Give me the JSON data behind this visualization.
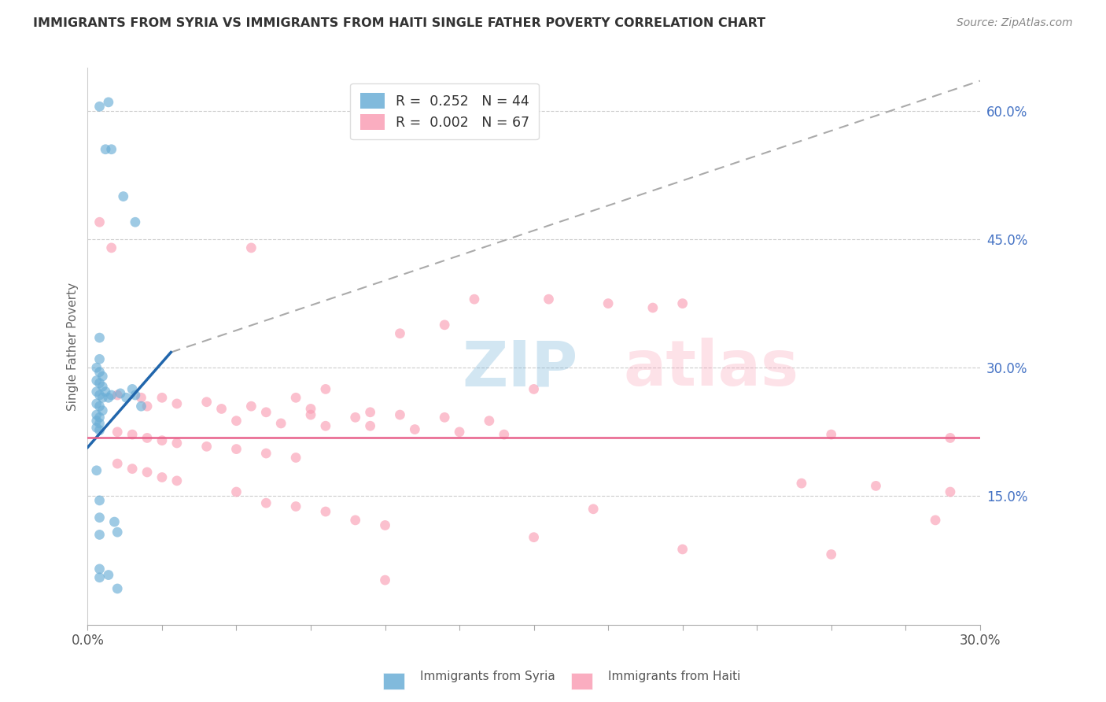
{
  "title": "IMMIGRANTS FROM SYRIA VS IMMIGRANTS FROM HAITI SINGLE FATHER POVERTY CORRELATION CHART",
  "source": "Source: ZipAtlas.com",
  "ylabel": "Single Father Poverty",
  "xlim": [
    0.0,
    0.3
  ],
  "ylim": [
    0.0,
    0.65
  ],
  "xtick_minor_vals": [
    0.0,
    0.025,
    0.05,
    0.075,
    0.1,
    0.125,
    0.15,
    0.175,
    0.2,
    0.225,
    0.25,
    0.275,
    0.3
  ],
  "xtick_edge_labels": {
    "0.0": "0.0%",
    "0.30": "30.0%"
  },
  "ytick_labels_right": [
    "15.0%",
    "30.0%",
    "45.0%",
    "60.0%"
  ],
  "ytick_vals_right": [
    0.15,
    0.3,
    0.45,
    0.6
  ],
  "legend_syria_R": "0.252",
  "legend_syria_N": "44",
  "legend_haiti_R": "0.002",
  "legend_haiti_N": "67",
  "syria_color": "#6baed6",
  "haiti_color": "#fa9fb5",
  "syria_line_color": "#2166ac",
  "haiti_line_color": "#e8608a",
  "watermark": "ZIPatlas",
  "watermark_color": "#b0c4de",
  "scatter_alpha": 0.65,
  "scatter_size": 85,
  "syria_points": [
    [
      0.004,
      0.605
    ],
    [
      0.007,
      0.61
    ],
    [
      0.006,
      0.555
    ],
    [
      0.008,
      0.555
    ],
    [
      0.012,
      0.5
    ],
    [
      0.016,
      0.47
    ],
    [
      0.004,
      0.335
    ],
    [
      0.004,
      0.31
    ],
    [
      0.003,
      0.3
    ],
    [
      0.004,
      0.295
    ],
    [
      0.005,
      0.29
    ],
    [
      0.003,
      0.285
    ],
    [
      0.004,
      0.282
    ],
    [
      0.005,
      0.278
    ],
    [
      0.003,
      0.272
    ],
    [
      0.004,
      0.268
    ],
    [
      0.005,
      0.265
    ],
    [
      0.003,
      0.258
    ],
    [
      0.004,
      0.255
    ],
    [
      0.005,
      0.25
    ],
    [
      0.003,
      0.245
    ],
    [
      0.004,
      0.242
    ],
    [
      0.003,
      0.238
    ],
    [
      0.004,
      0.235
    ],
    [
      0.003,
      0.23
    ],
    [
      0.004,
      0.227
    ],
    [
      0.006,
      0.272
    ],
    [
      0.007,
      0.265
    ],
    [
      0.008,
      0.268
    ],
    [
      0.011,
      0.27
    ],
    [
      0.013,
      0.265
    ],
    [
      0.015,
      0.275
    ],
    [
      0.016,
      0.268
    ],
    [
      0.018,
      0.255
    ],
    [
      0.003,
      0.18
    ],
    [
      0.004,
      0.145
    ],
    [
      0.004,
      0.125
    ],
    [
      0.004,
      0.105
    ],
    [
      0.009,
      0.12
    ],
    [
      0.01,
      0.108
    ],
    [
      0.004,
      0.065
    ],
    [
      0.004,
      0.055
    ],
    [
      0.007,
      0.058
    ],
    [
      0.01,
      0.042
    ]
  ],
  "haiti_points": [
    [
      0.004,
      0.47
    ],
    [
      0.008,
      0.44
    ],
    [
      0.055,
      0.44
    ],
    [
      0.13,
      0.38
    ],
    [
      0.155,
      0.38
    ],
    [
      0.175,
      0.375
    ],
    [
      0.19,
      0.37
    ],
    [
      0.12,
      0.35
    ],
    [
      0.2,
      0.375
    ],
    [
      0.105,
      0.34
    ],
    [
      0.08,
      0.275
    ],
    [
      0.15,
      0.275
    ],
    [
      0.07,
      0.265
    ],
    [
      0.01,
      0.268
    ],
    [
      0.018,
      0.265
    ],
    [
      0.025,
      0.265
    ],
    [
      0.04,
      0.26
    ],
    [
      0.055,
      0.255
    ],
    [
      0.075,
      0.252
    ],
    [
      0.095,
      0.248
    ],
    [
      0.02,
      0.255
    ],
    [
      0.03,
      0.258
    ],
    [
      0.045,
      0.252
    ],
    [
      0.06,
      0.248
    ],
    [
      0.075,
      0.245
    ],
    [
      0.09,
      0.242
    ],
    [
      0.105,
      0.245
    ],
    [
      0.12,
      0.242
    ],
    [
      0.135,
      0.238
    ],
    [
      0.05,
      0.238
    ],
    [
      0.065,
      0.235
    ],
    [
      0.08,
      0.232
    ],
    [
      0.095,
      0.232
    ],
    [
      0.11,
      0.228
    ],
    [
      0.125,
      0.225
    ],
    [
      0.14,
      0.222
    ],
    [
      0.01,
      0.225
    ],
    [
      0.015,
      0.222
    ],
    [
      0.02,
      0.218
    ],
    [
      0.025,
      0.215
    ],
    [
      0.03,
      0.212
    ],
    [
      0.04,
      0.208
    ],
    [
      0.05,
      0.205
    ],
    [
      0.06,
      0.2
    ],
    [
      0.07,
      0.195
    ],
    [
      0.01,
      0.188
    ],
    [
      0.015,
      0.182
    ],
    [
      0.02,
      0.178
    ],
    [
      0.025,
      0.172
    ],
    [
      0.03,
      0.168
    ],
    [
      0.05,
      0.155
    ],
    [
      0.06,
      0.142
    ],
    [
      0.07,
      0.138
    ],
    [
      0.08,
      0.132
    ],
    [
      0.09,
      0.122
    ],
    [
      0.1,
      0.116
    ],
    [
      0.15,
      0.102
    ],
    [
      0.2,
      0.088
    ],
    [
      0.25,
      0.082
    ],
    [
      0.29,
      0.218
    ],
    [
      0.265,
      0.162
    ],
    [
      0.285,
      0.122
    ],
    [
      0.24,
      0.165
    ],
    [
      0.29,
      0.155
    ],
    [
      0.1,
      0.052
    ],
    [
      0.25,
      0.222
    ],
    [
      0.17,
      0.135
    ]
  ],
  "syria_trendline_solid": [
    0.0,
    0.028,
    0.207,
    0.318
  ],
  "syria_trendline_dashed": [
    0.028,
    0.3,
    0.318,
    0.635
  ],
  "haiti_trendline": [
    0.0,
    0.3,
    0.218,
    0.218
  ]
}
